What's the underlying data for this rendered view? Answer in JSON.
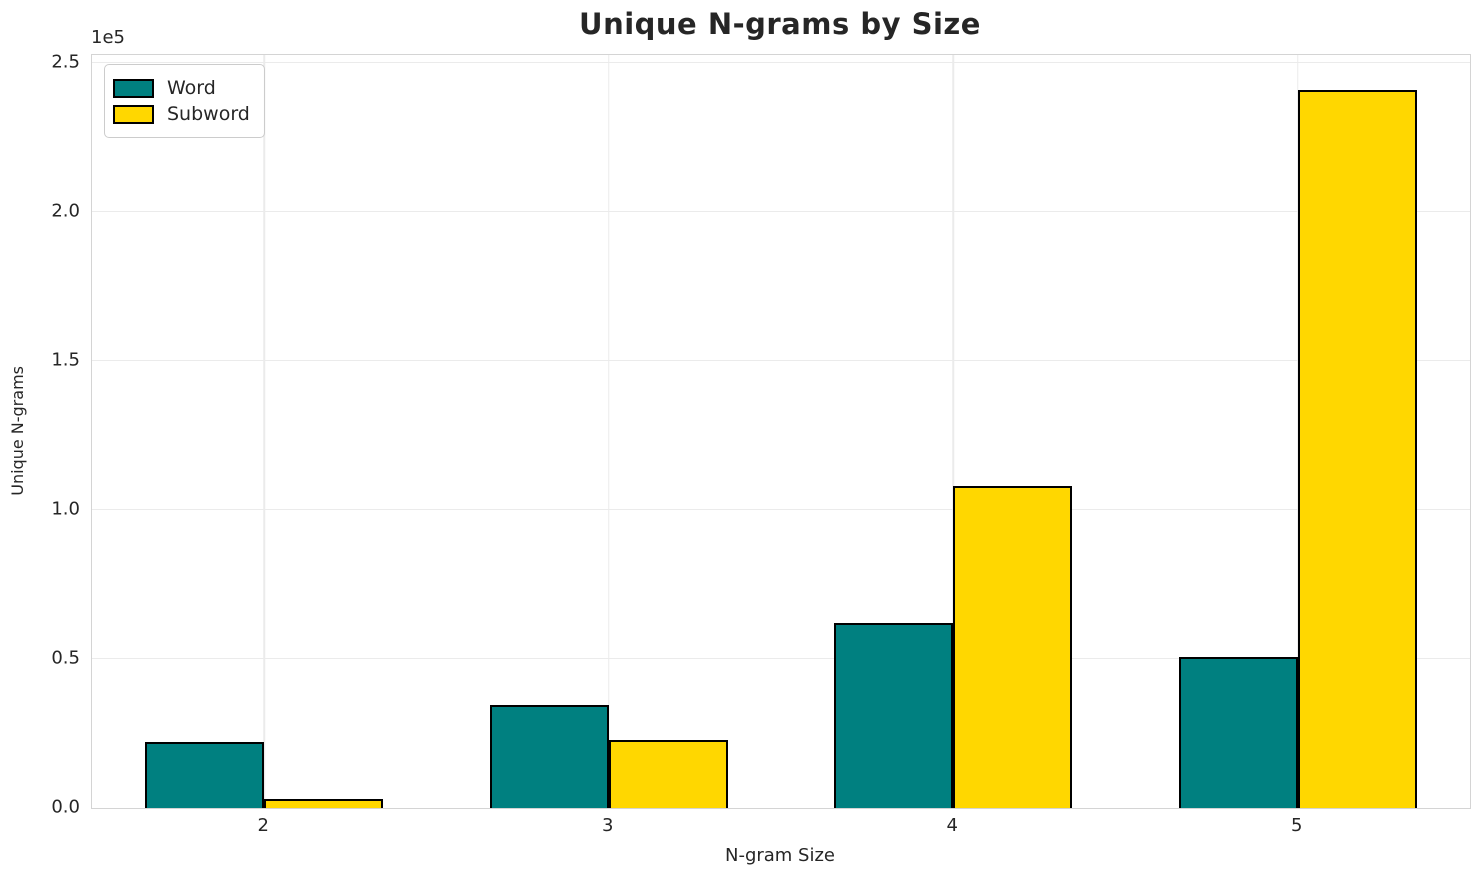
{
  "chart_data": {
    "type": "bar",
    "title": "Unique N-grams by Size",
    "xlabel": "N-gram Size",
    "ylabel": "Unique N-grams",
    "offset_text": "1e5",
    "categories": [
      "2",
      "3",
      "4",
      "5"
    ],
    "series": [
      {
        "name": "Word",
        "color": "#008080",
        "values": [
          22000,
          34500,
          62000,
          50600
        ]
      },
      {
        "name": "Subword",
        "color": "#ffd700",
        "values": [
          3000,
          22800,
          108000,
          241000
        ]
      }
    ],
    "ylim": [
      0,
      252700
    ],
    "yticks": [
      0,
      50000,
      100000,
      150000,
      200000,
      250000
    ],
    "ytick_labels": [
      "0.0",
      "0.5",
      "1.0",
      "1.5",
      "2.0",
      "2.5"
    ],
    "legend_position": "upper-left",
    "grid": true,
    "bar_edge_color": "#000000",
    "text_color": "#262626",
    "grid_color": "#ebebeb",
    "spine_color": "#d4d4d4",
    "background_color": "#ffffff"
  }
}
